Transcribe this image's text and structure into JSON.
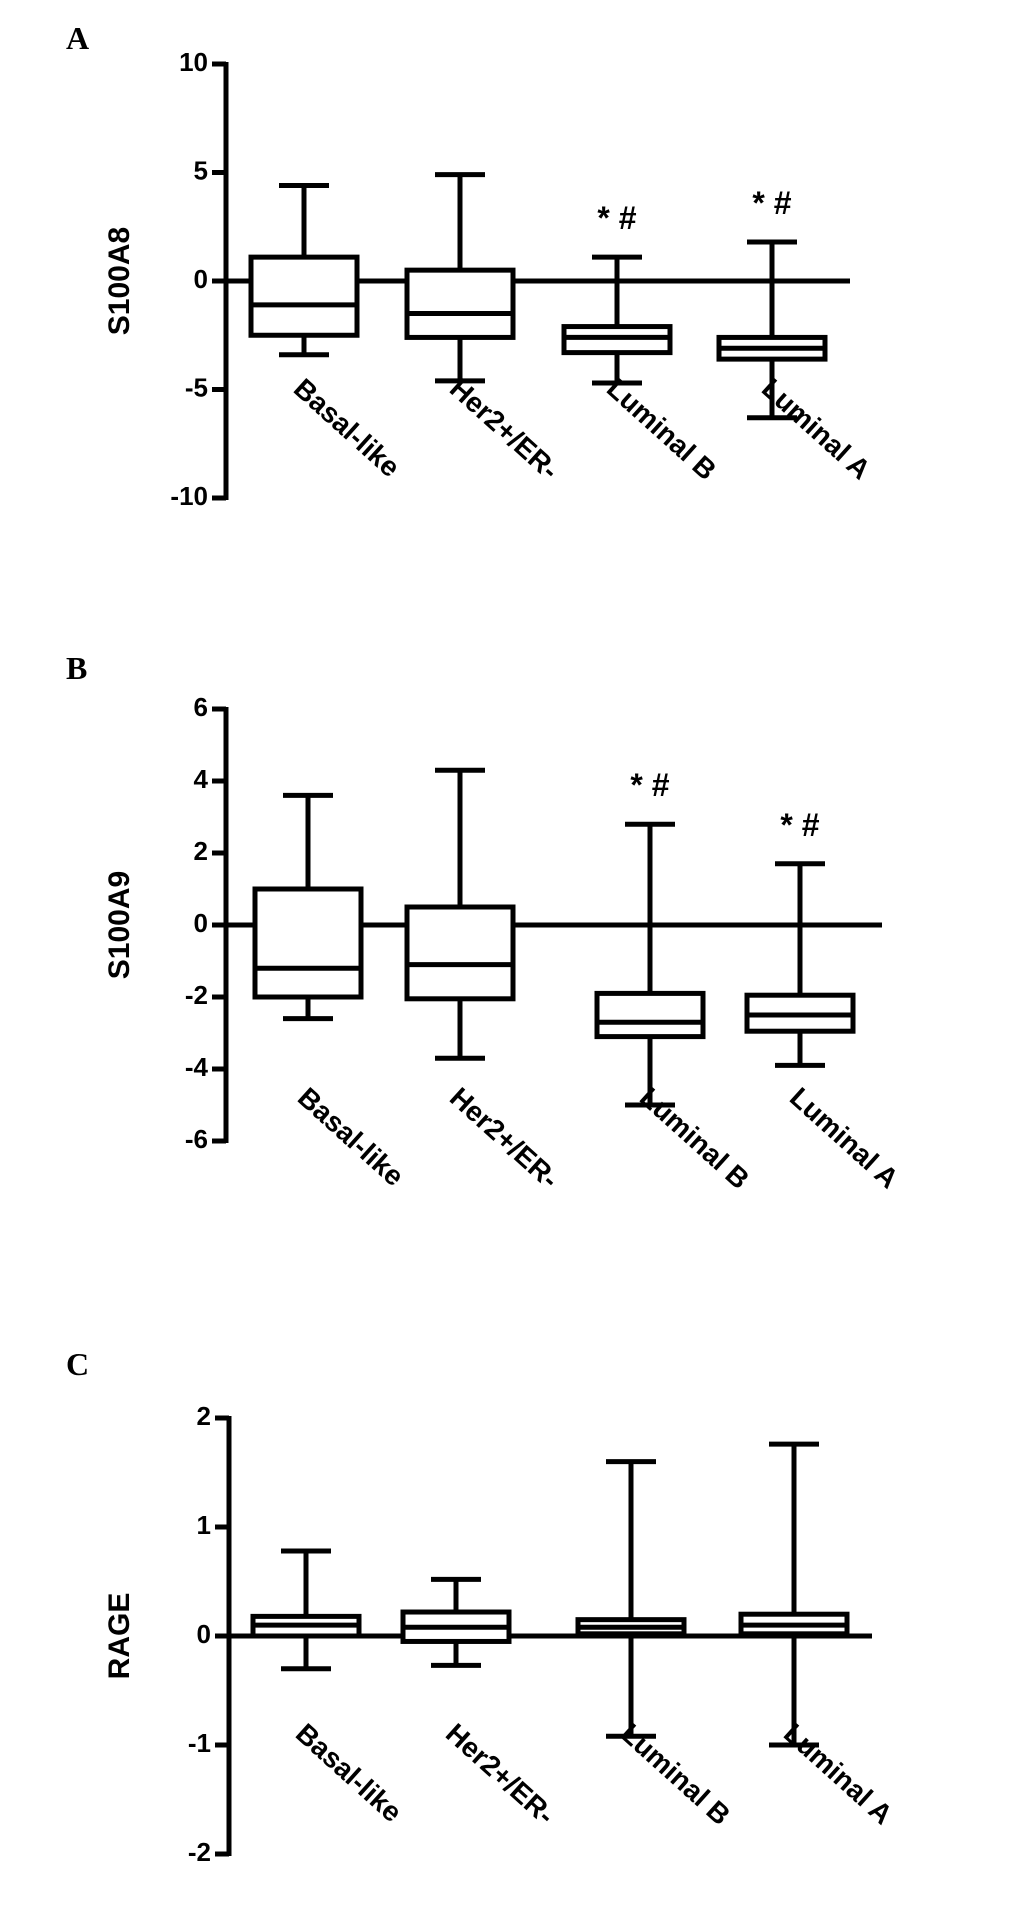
{
  "chart_data": [
    {
      "type": "box",
      "panel_label": "A",
      "y_label": "S100A8",
      "categories": [
        "Basal-like",
        "Her2+/ER-",
        "Luminal B",
        "Luminal A"
      ],
      "min": [
        -3.4,
        -4.6,
        -4.7,
        -6.3
      ],
      "q1": [
        -2.5,
        -2.6,
        -3.3,
        -3.6
      ],
      "median": [
        -1.1,
        -1.5,
        -2.6,
        -3.1
      ],
      "q3": [
        1.1,
        0.5,
        -2.1,
        -2.6
      ],
      "max": [
        4.4,
        4.9,
        1.1,
        1.8
      ],
      "annotations": [
        null,
        null,
        "* #",
        "* #"
      ],
      "ylim": [
        -10,
        10
      ],
      "yticks": [
        -10,
        -5,
        0,
        5,
        10
      ],
      "color": "#000000"
    },
    {
      "type": "box",
      "panel_label": "B",
      "y_label": "S100A9",
      "categories": [
        "Basal-like",
        "Her2+/ER-",
        "Luminal B",
        "Luminal A"
      ],
      "min": [
        -2.6,
        -3.7,
        -5.0,
        -3.9
      ],
      "q1": [
        -2.0,
        -2.05,
        -3.1,
        -2.95
      ],
      "median": [
        -1.2,
        -1.1,
        -2.7,
        -2.5
      ],
      "q3": [
        1.0,
        0.5,
        -1.9,
        -1.95
      ],
      "max": [
        3.6,
        4.3,
        2.8,
        1.7
      ],
      "annotations": [
        null,
        null,
        "* #",
        "* #"
      ],
      "ylim": [
        -6,
        6
      ],
      "yticks": [
        -6,
        -4,
        -2,
        0,
        2,
        4,
        6
      ],
      "color": "#000000"
    },
    {
      "type": "box",
      "panel_label": "C",
      "y_label": "RAGE",
      "categories": [
        "Basal-like",
        "Her2+/ER-",
        "Luminal B",
        "Luminal A"
      ],
      "min": [
        -0.3,
        -0.27,
        -0.92,
        -1.0
      ],
      "q1": [
        0.0,
        -0.05,
        0.02,
        0.02
      ],
      "median": [
        0.1,
        0.08,
        0.08,
        0.1
      ],
      "q3": [
        0.18,
        0.22,
        0.15,
        0.2
      ],
      "max": [
        0.78,
        0.52,
        1.6,
        1.76
      ],
      "annotations": [
        null,
        null,
        null,
        null
      ],
      "ylim": [
        -2,
        2
      ],
      "yticks": [
        -2,
        -1,
        0,
        1,
        2
      ],
      "color": "#000000"
    }
  ]
}
